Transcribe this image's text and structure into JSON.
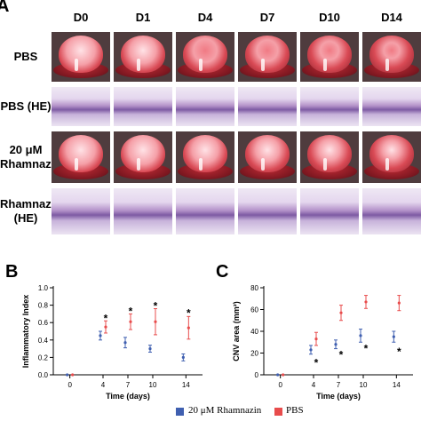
{
  "panel_a": {
    "letter": "A",
    "columns": [
      "D0",
      "D1",
      "D4",
      "D7",
      "D10",
      "D14"
    ],
    "rows": [
      {
        "label_lines": [
          "PBS",
          ""
        ],
        "kind": "eye"
      },
      {
        "label_lines": [
          "PBS (HE)",
          ""
        ],
        "kind": "he"
      },
      {
        "label_lines": [
          "20 μM",
          "Rhamnazin"
        ],
        "kind": "eye"
      },
      {
        "label_lines": [
          "Rhamnazin",
          "(HE)"
        ],
        "kind": "he"
      }
    ]
  },
  "legend": {
    "rhamnazin": "20 μM Rhamnazin",
    "pbs": "PBS",
    "colors": {
      "rhamnazin": "#3f5fb0",
      "pbs": "#e84c4c"
    }
  },
  "chart_data": [
    {
      "panel": "B",
      "type": "scatter",
      "ylabel": "Inflammatory Index",
      "xlabel": "Time (days)",
      "xticks": [
        0,
        4,
        7,
        10,
        14
      ],
      "yticks": [
        0.0,
        0.2,
        0.4,
        0.6,
        0.8,
        1.0
      ],
      "ytick_labels": [
        "0.0",
        "0.2",
        "0.4",
        "0.6",
        "0.8",
        "1.0"
      ],
      "ylim": [
        0,
        1.0
      ],
      "series": [
        {
          "name": "20 μM Rhamnazin",
          "color": "#3f5fb0",
          "x": [
            0,
            4,
            7,
            10,
            14
          ],
          "y": [
            0.0,
            0.45,
            0.37,
            0.3,
            0.2
          ],
          "err": [
            0.0,
            0.05,
            0.06,
            0.04,
            0.04
          ]
        },
        {
          "name": "PBS",
          "color": "#e84c4c",
          "x": [
            0,
            4,
            7,
            10,
            14
          ],
          "y": [
            0.0,
            0.55,
            0.61,
            0.61,
            0.54
          ],
          "err": [
            0.0,
            0.07,
            0.09,
            0.15,
            0.13
          ]
        }
      ],
      "stars": [
        {
          "x": 4,
          "y": 0.66,
          "text": "*"
        },
        {
          "x": 7,
          "y": 0.74,
          "text": "*"
        },
        {
          "x": 10,
          "y": 0.8,
          "text": "*"
        },
        {
          "x": 14,
          "y": 0.72,
          "text": "*"
        }
      ]
    },
    {
      "panel": "C",
      "type": "scatter",
      "ylabel": "CNV area  (mm²)",
      "xlabel": "Time (days)",
      "xticks": [
        0,
        4,
        7,
        10,
        14
      ],
      "yticks": [
        0,
        20,
        40,
        60,
        80
      ],
      "ytick_labels": [
        "0",
        "20",
        "40",
        "60",
        "80"
      ],
      "ylim": [
        0,
        80
      ],
      "series": [
        {
          "name": "20 μM Rhamnazin",
          "color": "#3f5fb0",
          "x": [
            0,
            4,
            7,
            10,
            14
          ],
          "y": [
            0,
            23,
            28,
            36,
            35
          ],
          "err": [
            0,
            4,
            4,
            6,
            5
          ]
        },
        {
          "name": "PBS",
          "color": "#e84c4c",
          "x": [
            0,
            4,
            7,
            10,
            14
          ],
          "y": [
            0,
            33,
            57,
            67,
            66
          ],
          "err": [
            0,
            6,
            7,
            6,
            7
          ]
        }
      ],
      "stars": [
        {
          "x": 4,
          "y": 12,
          "text": "*"
        },
        {
          "x": 7,
          "y": 19,
          "text": "*"
        },
        {
          "x": 10,
          "y": 25,
          "text": "*"
        },
        {
          "x": 14,
          "y": 22,
          "text": "*"
        }
      ]
    }
  ]
}
